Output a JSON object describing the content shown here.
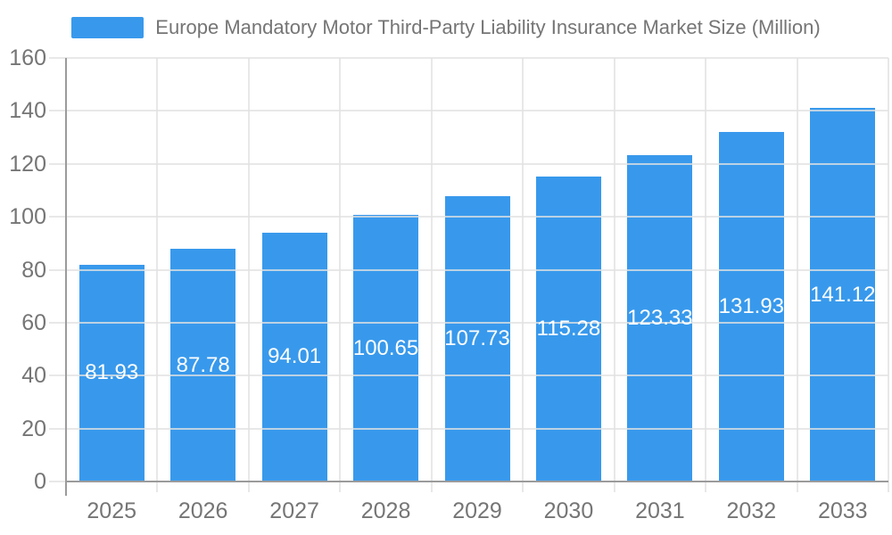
{
  "chart_data": {
    "type": "bar",
    "title": "Europe Mandatory Motor Third-Party Liability Insurance Market Size (Million)",
    "categories": [
      "2025",
      "2026",
      "2027",
      "2028",
      "2029",
      "2030",
      "2031",
      "2032",
      "2033"
    ],
    "values": [
      81.93,
      87.78,
      94.01,
      100.65,
      107.73,
      115.28,
      123.33,
      131.93,
      141.12
    ],
    "value_labels": [
      "81.93",
      "87.78",
      "94.01",
      "100.65",
      "107.73",
      "115.28",
      "123.33",
      "131.93",
      "141.12"
    ],
    "xlabel": "",
    "ylabel": "",
    "ylim": [
      0,
      160
    ],
    "y_ticks": [
      0,
      20,
      40,
      60,
      80,
      100,
      120,
      140,
      160
    ],
    "grid": true,
    "legend_position": "top-center",
    "colors": {
      "bar": "#3899EC",
      "axis_text": "#757575",
      "value_text": "#FFFFFF",
      "axis_line": "#9B9B9B",
      "gridline": "#E1E1E1",
      "background": "#FFFFFF"
    }
  }
}
